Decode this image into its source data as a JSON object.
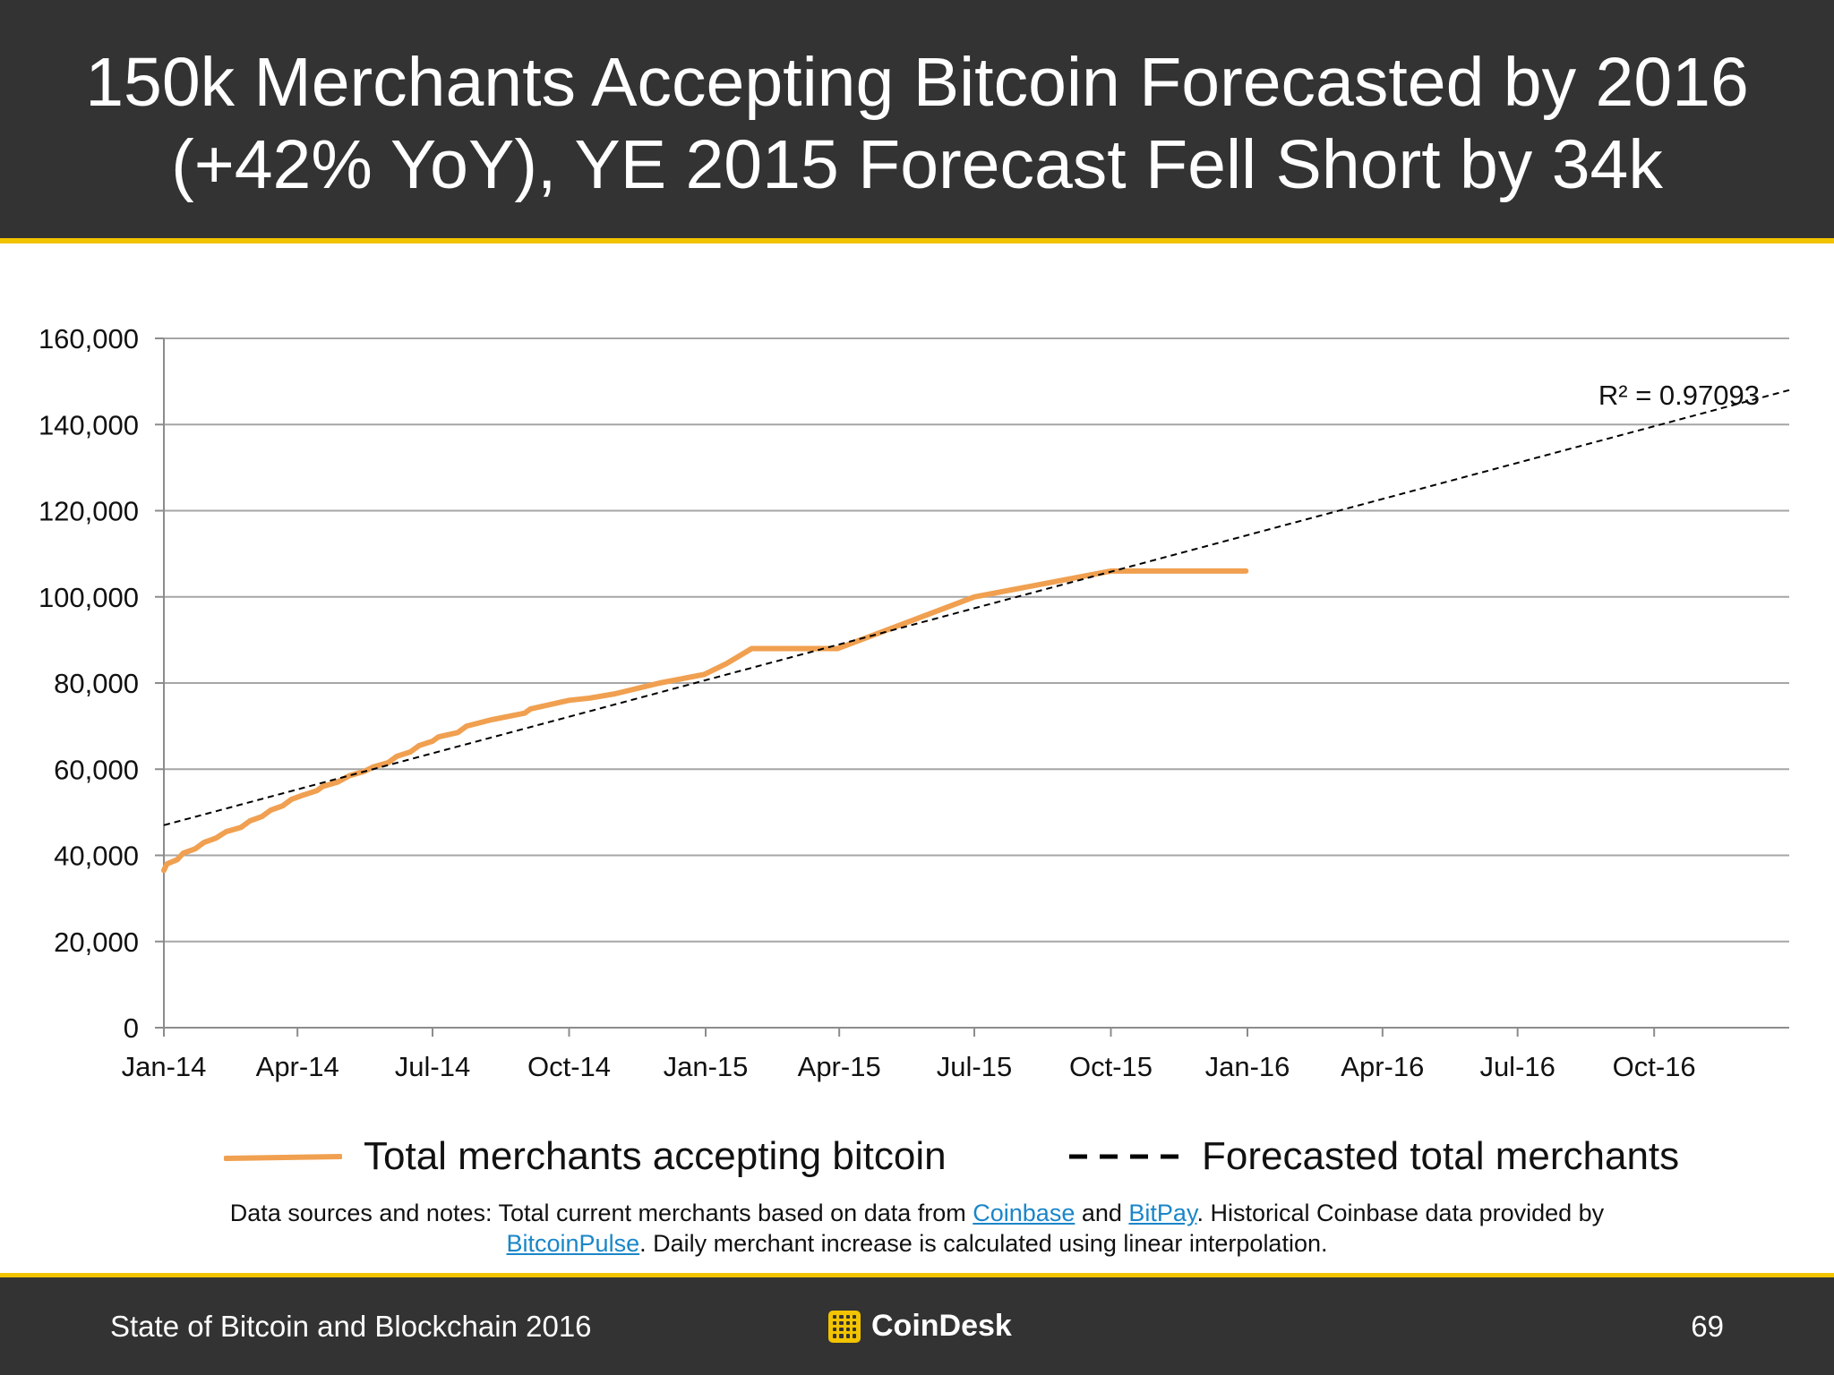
{
  "header": {
    "title_line1": "150k Merchants Accepting Bitcoin Forecasted by 2016",
    "title_line2": "(+42% YoY), YE 2015 Forecast Fell Short by 34k"
  },
  "colors": {
    "header_bg": "#333333",
    "accent": "#f2c300",
    "actual_series": "#f0a050",
    "forecast_series": "#000000",
    "gridline": "#a6a6a6",
    "link": "#1a86c8"
  },
  "chart_data": {
    "type": "line",
    "title": "",
    "xlabel": "",
    "ylabel": "",
    "ylim": [
      0,
      160000
    ],
    "yticks": [
      0,
      20000,
      40000,
      60000,
      80000,
      100000,
      120000,
      140000,
      160000
    ],
    "ytick_labels": [
      "0",
      "20,000",
      "40,000",
      "60,000",
      "80,000",
      "100,000",
      "120,000",
      "140,000",
      "160,000"
    ],
    "xlim": [
      "2014-01-01",
      "2016-12-31"
    ],
    "xticks": [
      "2014-01-01",
      "2014-04-01",
      "2014-07-01",
      "2014-10-01",
      "2015-01-01",
      "2015-04-01",
      "2015-07-01",
      "2015-10-01",
      "2016-01-01",
      "2016-04-01",
      "2016-07-01",
      "2016-10-01"
    ],
    "xtick_labels": [
      "Jan-14",
      "Apr-14",
      "Jul-14",
      "Oct-14",
      "Jan-15",
      "Apr-15",
      "Jul-15",
      "Oct-15",
      "Jan-16",
      "Apr-16",
      "Jul-16",
      "Oct-16"
    ],
    "grid": true,
    "legend_position": "bottom",
    "series": [
      {
        "name": "Total merchants accepting bitcoin",
        "style": "solid",
        "points": [
          [
            "2014-01-01",
            36500
          ],
          [
            "2014-01-03",
            38000
          ],
          [
            "2014-01-10",
            39000
          ],
          [
            "2014-01-14",
            40500
          ],
          [
            "2014-01-22",
            41500
          ],
          [
            "2014-01-28",
            43000
          ],
          [
            "2014-02-05",
            44000
          ],
          [
            "2014-02-12",
            45500
          ],
          [
            "2014-02-22",
            46500
          ],
          [
            "2014-02-28",
            48000
          ],
          [
            "2014-03-08",
            49000
          ],
          [
            "2014-03-14",
            50500
          ],
          [
            "2014-03-22",
            51500
          ],
          [
            "2014-03-28",
            53000
          ],
          [
            "2014-04-05",
            54000
          ],
          [
            "2014-04-14",
            55000
          ],
          [
            "2014-04-18",
            56000
          ],
          [
            "2014-04-28",
            57000
          ],
          [
            "2014-05-06",
            58500
          ],
          [
            "2014-05-16",
            59500
          ],
          [
            "2014-05-22",
            60500
          ],
          [
            "2014-06-01",
            61500
          ],
          [
            "2014-06-07",
            63000
          ],
          [
            "2014-06-16",
            64000
          ],
          [
            "2014-06-22",
            65500
          ],
          [
            "2014-07-01",
            66500
          ],
          [
            "2014-07-05",
            67500
          ],
          [
            "2014-07-18",
            68500
          ],
          [
            "2014-07-24",
            70000
          ],
          [
            "2014-08-10",
            71500
          ],
          [
            "2014-09-01",
            73000
          ],
          [
            "2014-09-05",
            74000
          ],
          [
            "2014-10-01",
            76000
          ],
          [
            "2014-10-15",
            76500
          ],
          [
            "2014-11-01",
            77500
          ],
          [
            "2014-12-01",
            80000
          ],
          [
            "2014-12-31",
            82000
          ],
          [
            "2015-01-15",
            84500
          ],
          [
            "2015-02-01",
            88000
          ],
          [
            "2015-03-31",
            88000
          ],
          [
            "2015-07-01",
            100000
          ],
          [
            "2015-10-01",
            106000
          ],
          [
            "2015-12-31",
            106000
          ]
        ]
      },
      {
        "name": "Forecasted total merchants",
        "style": "dashed",
        "points": [
          [
            "2014-01-01",
            47000
          ],
          [
            "2016-12-31",
            148000
          ]
        ]
      }
    ],
    "annotations": [
      {
        "text": "R² = 0.97093"
      }
    ]
  },
  "legend": {
    "actual_label": "Total merchants accepting bitcoin",
    "forecast_label": "Forecasted total merchants"
  },
  "notes": {
    "part1": "Data sources and notes: Total current merchants based on data from ",
    "link1": "Coinbase",
    "part2": " and ",
    "link2": "BitPay",
    "part3": ". Historical Coinbase data provided by ",
    "link3": "BitcoinPulse",
    "part4": ". Daily merchant increase is calculated using linear interpolation."
  },
  "footer": {
    "left_text": "State of Bitcoin and Blockchain 2016",
    "brand": "CoinDesk",
    "page_number": "69"
  }
}
